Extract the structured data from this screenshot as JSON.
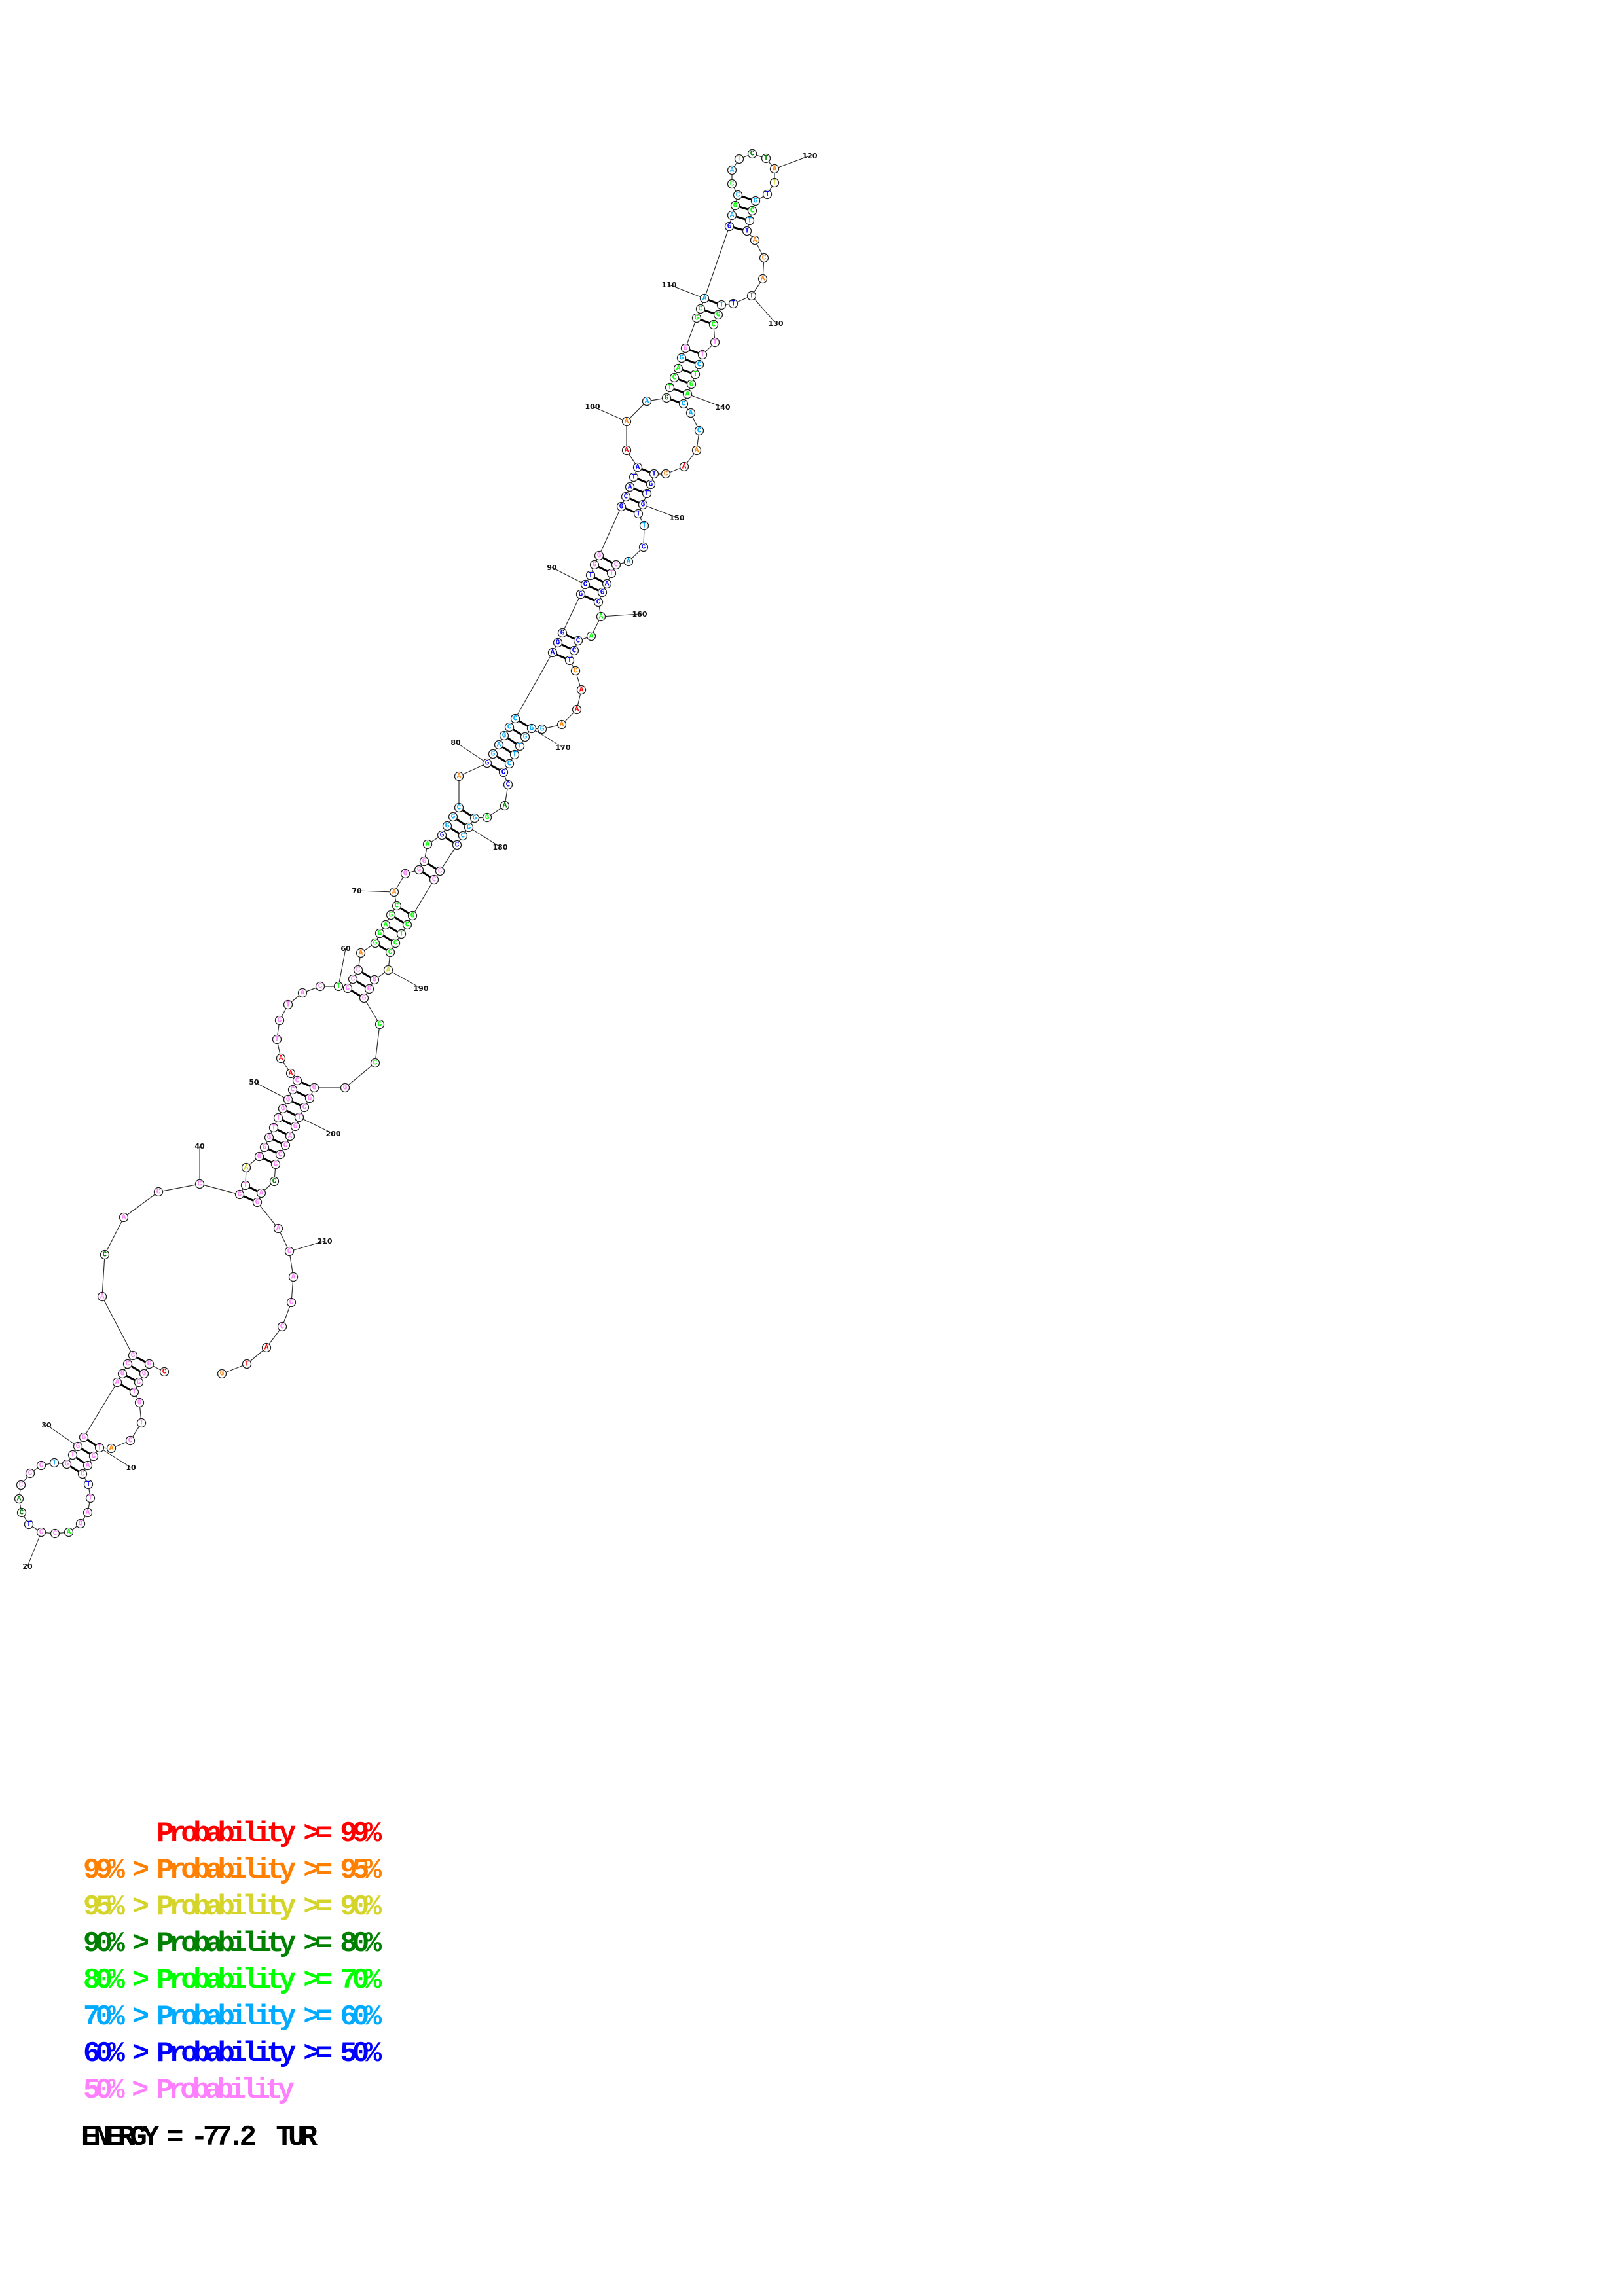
{
  "structure": {
    "sequence": "CGGCTGTCATCACTTAGACCTCACCCTGTGGAGCCACACCCTAGGGTTGGCCAATCTACTCCCAGGAGCAGGGAGGGCAGGAGCCAGGGCTGGGCATAAAAGTCAGGGCAGAGCCATCTATTGCTTACATTTGCTTCTGACACAACTGTGTTCACTAGCAACCTCAAAGGGTTCCCAGGCCCCCGCTCCAGGGCCGGGCTGACCCCAGACACCATG",
    "probability_classes": "RPPPPPPPOPPPPBPPPGPPBDDPPPLPPPPPPPPPDPPPPPYPPPPPPPPPRRPPPPPGPPPOGGGGGOPPPGBLLLOBLLLLLBBBBBBPPBBBBBROLDGGGLPGGLBLGLGLYDDOYBLGLBOOODBLGGPPLGGGLLLOROBBBBBLBLPPBBBGGBBBORROLLLLLLBBDGLLLBPPGGGGGYPPPGGPPPPPPPPPPDPPPPPPPRRO",
    "pairs": [
      [
        2,
        35
      ],
      [
        3,
        34
      ],
      [
        4,
        33
      ],
      [
        5,
        32
      ],
      [
        10,
        31
      ],
      [
        11,
        30
      ],
      [
        12,
        29
      ],
      [
        13,
        28
      ],
      [
        41,
        208
      ],
      [
        42,
        207
      ],
      [
        44,
        205
      ],
      [
        45,
        204
      ],
      [
        46,
        203
      ],
      [
        47,
        202
      ],
      [
        48,
        201
      ],
      [
        49,
        200
      ],
      [
        50,
        199
      ],
      [
        51,
        198
      ],
      [
        52,
        197
      ],
      [
        61,
        193
      ],
      [
        62,
        192
      ],
      [
        63,
        191
      ],
      [
        65,
        189
      ],
      [
        66,
        188
      ],
      [
        67,
        187
      ],
      [
        68,
        186
      ],
      [
        69,
        185
      ],
      [
        72,
        184
      ],
      [
        73,
        183
      ],
      [
        75,
        182
      ],
      [
        76,
        181
      ],
      [
        77,
        180
      ],
      [
        78,
        179
      ],
      [
        80,
        175
      ],
      [
        81,
        174
      ],
      [
        82,
        173
      ],
      [
        83,
        172
      ],
      [
        84,
        171
      ],
      [
        85,
        170
      ],
      [
        86,
        164
      ],
      [
        87,
        163
      ],
      [
        88,
        162
      ],
      [
        89,
        159
      ],
      [
        90,
        158
      ],
      [
        91,
        157
      ],
      [
        92,
        156
      ],
      [
        93,
        155
      ],
      [
        94,
        151
      ],
      [
        95,
        150
      ],
      [
        96,
        149
      ],
      [
        97,
        148
      ],
      [
        98,
        147
      ],
      [
        102,
        141
      ],
      [
        103,
        140
      ],
      [
        104,
        139
      ],
      [
        105,
        138
      ],
      [
        106,
        137
      ],
      [
        107,
        136
      ],
      [
        108,
        134
      ],
      [
        109,
        133
      ],
      [
        110,
        132
      ],
      [
        111,
        126
      ],
      [
        112,
        125
      ],
      [
        113,
        124
      ],
      [
        114,
        123
      ]
    ],
    "position_labels": [
      "10",
      "20",
      "30",
      "40",
      "50",
      "60",
      "70",
      "80",
      "90",
      "100",
      "110",
      "120",
      "130",
      "140",
      "150",
      "160",
      "170",
      "180",
      "190",
      "200",
      "210"
    ]
  },
  "colors": {
    "R": "#ff0000",
    "O": "#ff8000",
    "Y": "#d4d42a",
    "D": "#008000",
    "G": "#00ff00",
    "L": "#00aaff",
    "B": "#0000ff",
    "P": "#ff80ff"
  },
  "legend": {
    "lines": [
      {
        "text": "      Probability >= 99%",
        "class": "R"
      },
      {
        "text": "99% > Probability >= 95%",
        "class": "O"
      },
      {
        "text": "95% > Probability >= 90%",
        "class": "Y"
      },
      {
        "text": "90% > Probability >= 80%",
        "class": "D"
      },
      {
        "text": "80% > Probability >= 70%",
        "class": "G"
      },
      {
        "text": "70% > Probability >= 60%",
        "class": "L"
      },
      {
        "text": "60% > Probability >= 50%",
        "class": "B"
      },
      {
        "text": "50% > Probability",
        "class": "P"
      }
    ],
    "energy": "ENERGY = -77.2  TUR"
  }
}
